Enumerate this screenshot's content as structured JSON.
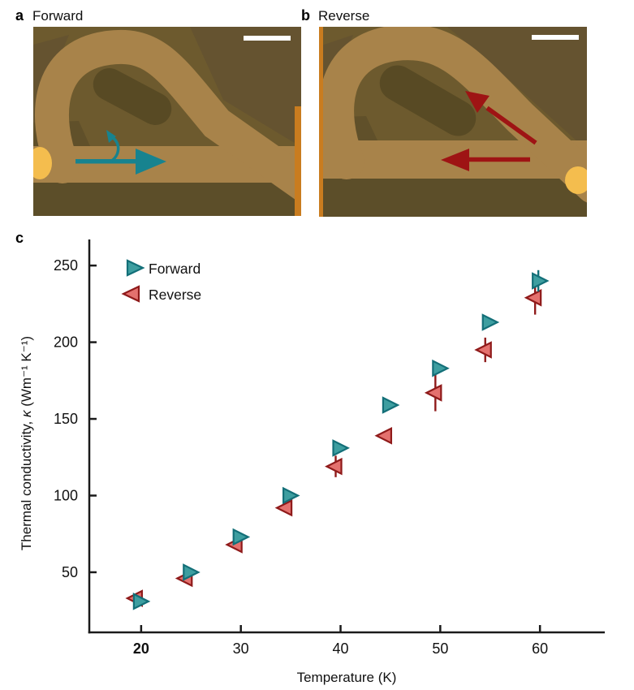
{
  "figure": {
    "panels": {
      "a": {
        "label": "a",
        "title": "Forward"
      },
      "b": {
        "label": "b",
        "title": "Reverse"
      },
      "c": {
        "label": "c"
      }
    }
  },
  "micrograph": {
    "colors": {
      "base": "#6d5a2e",
      "shade": "#655330",
      "shade2": "#60502a",
      "below_bar": "#5c4e29",
      "device": "#a8834a",
      "hole": "#584a24",
      "dot": "#f4bd4e",
      "edge_strip": "#c97c1f",
      "scalebar": "#ffffff"
    },
    "forward_arrow_color": "#17838f",
    "reverse_arrow_color": "#9e1414"
  },
  "chart_data": {
    "type": "scatter",
    "title": "",
    "xlabel": "Temperature (K)",
    "ylabel_pre": "Thermal conductivity, ",
    "ylabel_kappa": "κ",
    "ylabel_post": " (Wm⁻¹ K⁻¹)",
    "xlim": [
      14.8,
      66.5
    ],
    "ylim": [
      10.8,
      267
    ],
    "xticks": [
      20,
      30,
      40,
      50,
      60
    ],
    "bold_xtick": 20,
    "yticks": [
      50,
      100,
      150,
      200,
      250
    ],
    "grid": false,
    "legend_position": "upper-left-inside",
    "series": [
      {
        "name": "Forward",
        "marker": "triangle-right",
        "fill": "#3d9ea0",
        "edge": "#136f78",
        "x": [
          20,
          25,
          30,
          35,
          40,
          45,
          50,
          55,
          60
        ],
        "y": [
          31,
          50,
          73,
          100,
          131,
          159,
          183,
          213,
          240
        ],
        "yerr": [
          0,
          0,
          0,
          0,
          0,
          0,
          0,
          0,
          7
        ]
      },
      {
        "name": "Reverse",
        "marker": "triangle-left",
        "fill": "#e4716e",
        "edge": "#8f1a1a",
        "x": [
          20,
          25,
          30,
          35,
          40,
          45,
          50,
          55,
          60
        ],
        "y": [
          33,
          46,
          68,
          92,
          119,
          139,
          167,
          195,
          229
        ],
        "yerr": [
          0,
          0,
          0,
          0,
          7,
          0,
          12,
          8,
          11
        ]
      }
    ]
  }
}
